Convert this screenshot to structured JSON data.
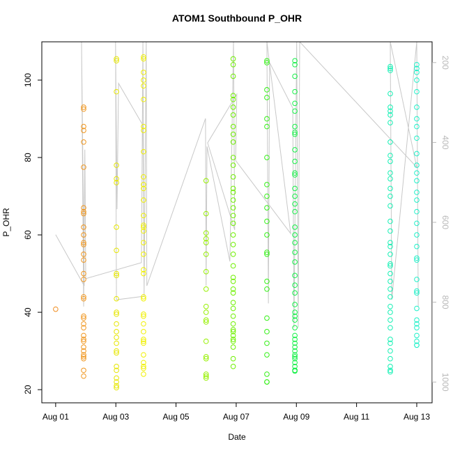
{
  "chart_data": {
    "type": "scatter",
    "title": "ATOM1 Southbound P_OHR",
    "x_label": "Date",
    "y_label": "P_OHR",
    "xlim": [
      -0.46,
      12.51
    ],
    "xticks": [
      {
        "value": 0,
        "label": "Aug 01"
      },
      {
        "value": 2,
        "label": "Aug 03"
      },
      {
        "value": 4,
        "label": "Aug 05"
      },
      {
        "value": 6,
        "label": "Aug 07"
      },
      {
        "value": 8,
        "label": "Aug 09"
      },
      {
        "value": 10,
        "label": "Aug 11"
      },
      {
        "value": 12,
        "label": "Aug 13"
      }
    ],
    "ylim": [
      16.6,
      109.9
    ],
    "yticks": [
      20,
      40,
      60,
      80,
      100
    ],
    "y2lim": [
      1052,
      148
    ],
    "y2ticks": [
      200,
      400,
      600,
      800,
      1000
    ],
    "series": [
      {
        "type": "line",
        "axis": "y2",
        "color": "#c8c8c8",
        "x": [
          0,
          0.95,
          0.86,
          0.93,
          0.97,
          1.0,
          2.85,
          2.9,
          2.94,
          2.02,
          1.99,
          2.04,
          2.09,
          2.9,
          2.94,
          3.01,
          3.03,
          4.98,
          5.0,
          5.03,
          5.79,
          5.91,
          5.95,
          5.05,
          6.02,
          5.98,
          7.81,
          7.02,
          7.07,
          7.11,
          7.88,
          7.92,
          8.01,
          8.06,
          8.11,
          12.0,
          11.12,
          11.17,
          12.0,
          12.05
        ],
        "values": [
          631,
          759,
          148,
          811,
          418,
          741,
          701,
          148,
          785,
          794,
          148,
          567,
          252,
          357,
          776,
          148,
          759,
          340,
          759,
          410,
          698,
          148,
          619,
          401,
          279,
          445,
          628,
          148,
          803,
          200,
          314,
          864,
          148,
          864,
          148,
          462,
          148,
          794,
          148,
          811
        ]
      },
      {
        "type": "scatter",
        "color": "#f08c1e",
        "x": 0,
        "values": [
          40.8
        ]
      },
      {
        "type": "scatter",
        "color": "#f0961e",
        "x": 0.93,
        "values": [
          93,
          92.5,
          88,
          87,
          84,
          77.5,
          67,
          66,
          65.5,
          62,
          60,
          58,
          57.5,
          55,
          53.5,
          50,
          48.5,
          44,
          43.5,
          39,
          38.5,
          37,
          36,
          34,
          33,
          32.5,
          31,
          30,
          29,
          28.5,
          28,
          25,
          23.5
        ]
      },
      {
        "type": "scatter",
        "color": "#e6e600",
        "x": 2.02,
        "values": [
          105.5,
          105,
          97,
          78,
          74.5,
          73.5,
          62,
          56,
          50,
          49.5,
          43.5,
          40,
          39.5,
          37,
          35,
          33.5,
          32,
          30,
          29.5,
          26,
          25,
          23,
          22,
          21,
          20.5
        ]
      },
      {
        "type": "scatter",
        "color": "#f0f000",
        "x": 2.92,
        "values": [
          106,
          105.5,
          102,
          100,
          98.5,
          95,
          88,
          87,
          81.5,
          75,
          73,
          72,
          69,
          65,
          62.5,
          62,
          61,
          58,
          55,
          51,
          50,
          44,
          43.5,
          39.5,
          39,
          37,
          35,
          33,
          32.5,
          32,
          29,
          27,
          26,
          25.5,
          24
        ]
      },
      {
        "type": "scatter",
        "color": "#96f000",
        "x": 5.0,
        "values": [
          74,
          65.5,
          60.5,
          59,
          58,
          55,
          50.5,
          46,
          41.5,
          40,
          38,
          37.5,
          32.5,
          28.5,
          28,
          24,
          23.5,
          23
        ]
      },
      {
        "type": "scatter",
        "color": "#6ef000",
        "x": 5.9,
        "values": [
          105.5,
          104,
          101,
          96,
          95,
          93,
          91,
          88,
          86,
          84,
          80,
          78,
          75,
          72,
          71,
          69,
          67,
          65,
          63,
          60,
          57.5,
          55,
          52,
          49,
          48,
          46,
          45,
          42.5,
          41,
          39,
          37,
          35.5,
          35,
          34,
          33,
          32.5,
          31,
          28,
          26
        ]
      },
      {
        "type": "scatter",
        "color": "#32f014",
        "x": 7.02,
        "values": [
          105,
          104.5,
          97.5,
          95.5,
          90,
          88,
          80,
          73,
          70,
          67,
          63.5,
          60,
          55.5,
          55,
          48,
          46,
          38.5,
          35,
          32,
          29,
          24,
          22,
          22
        ]
      },
      {
        "type": "scatter",
        "color": "#14f046",
        "x": 7.95,
        "values": [
          105,
          104,
          101,
          97,
          94,
          92,
          88,
          86.5,
          86,
          82,
          79,
          76,
          75.5,
          72,
          70,
          68,
          66,
          62,
          60,
          58,
          55.5,
          53,
          49.5,
          47,
          45,
          42,
          40,
          39,
          38,
          36,
          34,
          33,
          32,
          31,
          30,
          29,
          28.5,
          28,
          27,
          26,
          25,
          25,
          24.8
        ]
      },
      {
        "type": "scatter",
        "color": "#14f0b4",
        "x": 11.12,
        "values": [
          103.5,
          103,
          102.5,
          96.5,
          93,
          92,
          91,
          89,
          84,
          80.5,
          79,
          76,
          74.5,
          72,
          70,
          67.5,
          63.5,
          61,
          58,
          57,
          55,
          52.5,
          52,
          50,
          48,
          46,
          44,
          41.5,
          40,
          38,
          36,
          33,
          32,
          30,
          28,
          26,
          25,
          24.6
        ]
      },
      {
        "type": "scatter",
        "color": "#1ef0c8",
        "x": 12.0,
        "values": [
          104,
          103,
          102,
          100,
          97,
          93,
          90,
          88,
          85,
          81,
          78,
          76,
          74,
          71,
          69,
          66,
          63,
          60,
          57,
          54,
          53.5,
          48.5,
          45.5,
          45,
          41,
          38,
          37,
          36,
          34,
          32.5,
          31.5,
          31.5
        ]
      }
    ]
  }
}
